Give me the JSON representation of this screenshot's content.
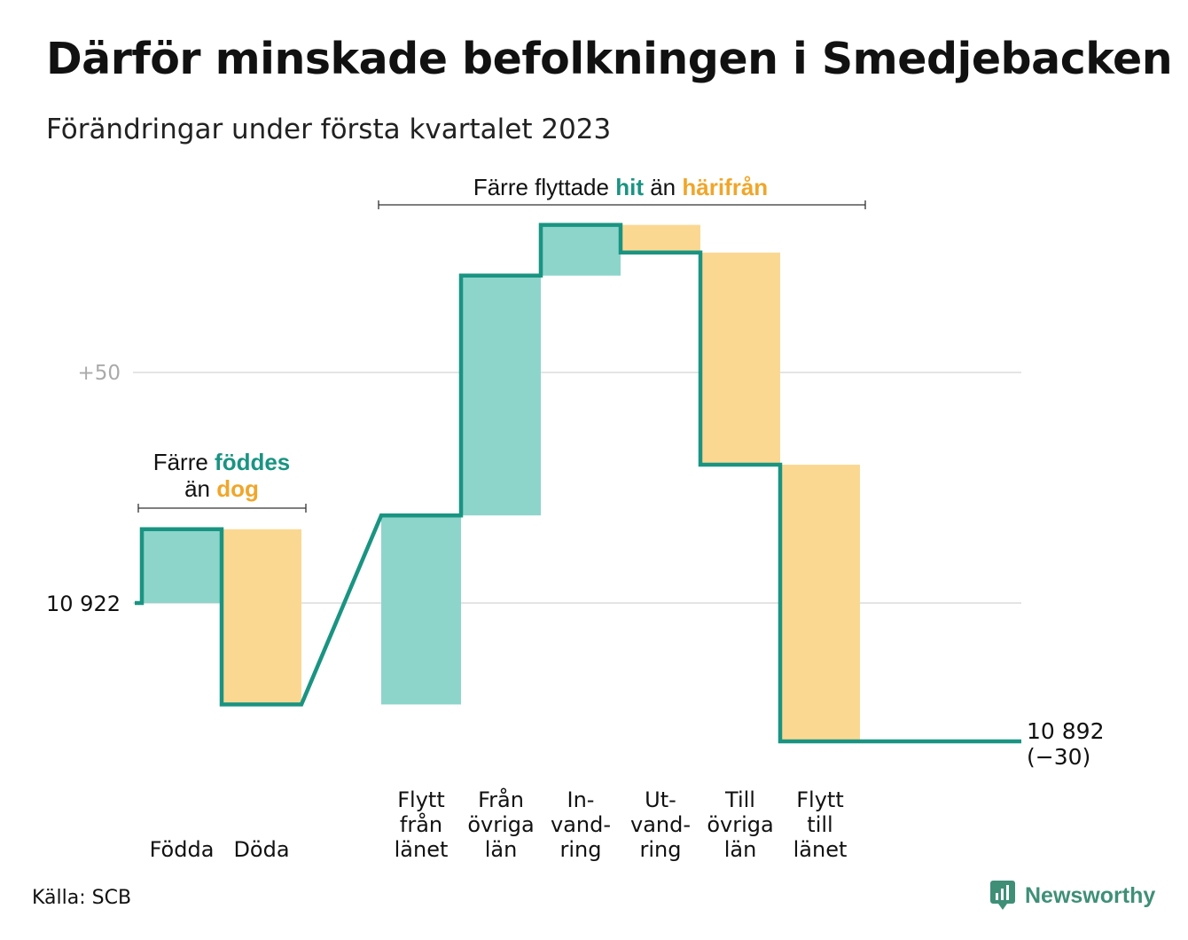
{
  "title": "Därför minskade befolkningen i Smedjebacken",
  "subtitle": "Förändringar under första kvartalet 2023",
  "source": "Källa: SCB",
  "brand": "Newsworthy",
  "annotations": {
    "births": {
      "prefix": "Färre ",
      "hl1": "föddes",
      "line2a": "än ",
      "hl2": "dog"
    },
    "migration": {
      "prefix": "Färre flyttade ",
      "hl1": "hit",
      "mid": " än ",
      "hl2": "härifrån"
    }
  },
  "colors": {
    "increase": "#8dd5cb",
    "decrease": "#fbd892",
    "line": "#1a9482",
    "highlight_teal": "#1a9482",
    "highlight_orange": "#f0a62a",
    "grid": "#e4e4e4"
  },
  "chart_data": {
    "type": "waterfall",
    "start": {
      "value": 10922,
      "label": "10 922"
    },
    "end": {
      "value": 10892,
      "label": "10 892",
      "change_label": "(−30)"
    },
    "gridlines": [
      {
        "value": 10972,
        "label": "+50"
      }
    ],
    "ylim": [
      10890,
      11010
    ],
    "steps": [
      {
        "category": "Födda",
        "label_lines": [
          "Födda"
        ],
        "delta": 16,
        "gap_after": false
      },
      {
        "category": "Döda",
        "label_lines": [
          "Döda"
        ],
        "delta": -38,
        "gap_after": true
      },
      {
        "category": "Flytt från länet",
        "label_lines": [
          "Flytt",
          "från",
          "länet"
        ],
        "delta": 41,
        "gap_after": false
      },
      {
        "category": "Från övriga län",
        "label_lines": [
          "Från",
          "övriga",
          "län"
        ],
        "delta": 52,
        "gap_after": false
      },
      {
        "category": "Invandring",
        "label_lines": [
          "In-",
          "vand-",
          "ring"
        ],
        "delta": 11,
        "gap_after": false
      },
      {
        "category": "Utvandring",
        "label_lines": [
          "Ut-",
          "vand-",
          "ring"
        ],
        "delta": -6,
        "gap_after": false
      },
      {
        "category": "Till övriga län",
        "label_lines": [
          "Till",
          "övriga",
          "län"
        ],
        "delta": -46,
        "gap_after": false
      },
      {
        "category": "Flytt till länet",
        "label_lines": [
          "Flytt",
          "till",
          "länet"
        ],
        "delta": -60,
        "gap_after": false
      }
    ]
  }
}
